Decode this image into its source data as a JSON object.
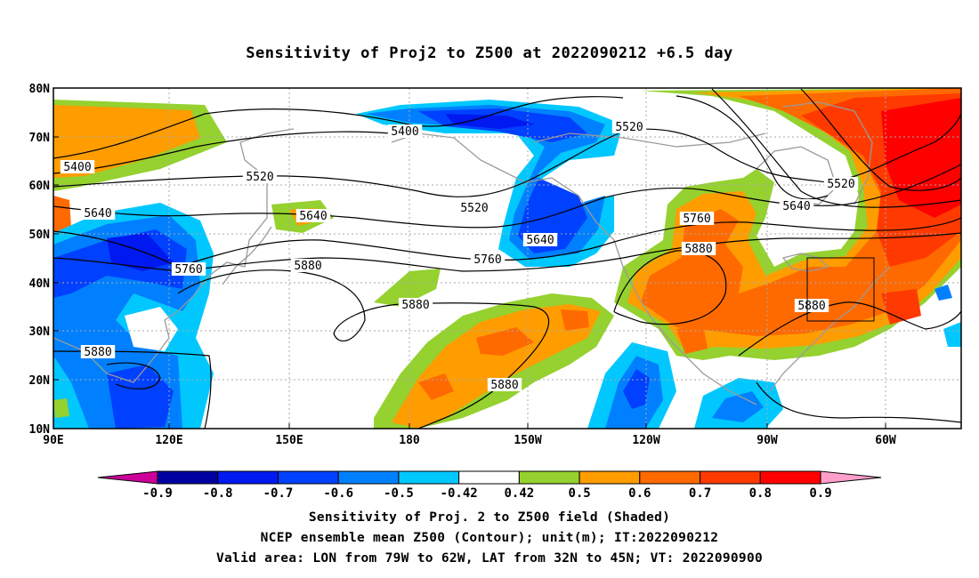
{
  "title": "Sensitivity of Proj2 to Z500 at 2022090212 +6.5 day",
  "map": {
    "lat_ticks": [
      "80N",
      "70N",
      "60N",
      "50N",
      "40N",
      "30N",
      "20N",
      "10N"
    ],
    "lon_ticks": [
      "90E",
      "120E",
      "150E",
      "180",
      "150W",
      "120W",
      "90W",
      "60W"
    ],
    "grid": true,
    "contour_labels": [
      "5400",
      "5400",
      "5520",
      "5520",
      "5520",
      "5520",
      "5640",
      "5640",
      "5640",
      "5640",
      "5760",
      "5760",
      "5760",
      "5880",
      "5880",
      "5880",
      "5880",
      "5880",
      "5880"
    ],
    "valid_area_box": {
      "lon": [
        "79W",
        "62W"
      ],
      "lat": [
        "32N",
        "45N"
      ]
    }
  },
  "colorbar": {
    "labels": [
      "-0.9",
      "-0.8",
      "-0.7",
      "-0.6",
      "-0.5",
      "-0.42",
      "0.42",
      "0.5",
      "0.6",
      "0.7",
      "0.8",
      "0.9"
    ],
    "colors": [
      "#cc0099",
      "#0000a0",
      "#0019f0",
      "#0040ff",
      "#0080ff",
      "#00c8ff",
      "#ffffff",
      "#95d12f",
      "#ff9d00",
      "#ff6a00",
      "#ff3a00",
      "#ff0000",
      "#ff9ecb"
    ]
  },
  "footer": {
    "line1": "Sensitivity of Proj. 2 to Z500 field (Shaded)",
    "line2": "NCEP ensemble mean Z500 (Contour); unit(m); IT:2022090212",
    "line3": "Valid area: LON from 79W to 62W, LAT from 32N to 45N; VT: 2022090900"
  }
}
